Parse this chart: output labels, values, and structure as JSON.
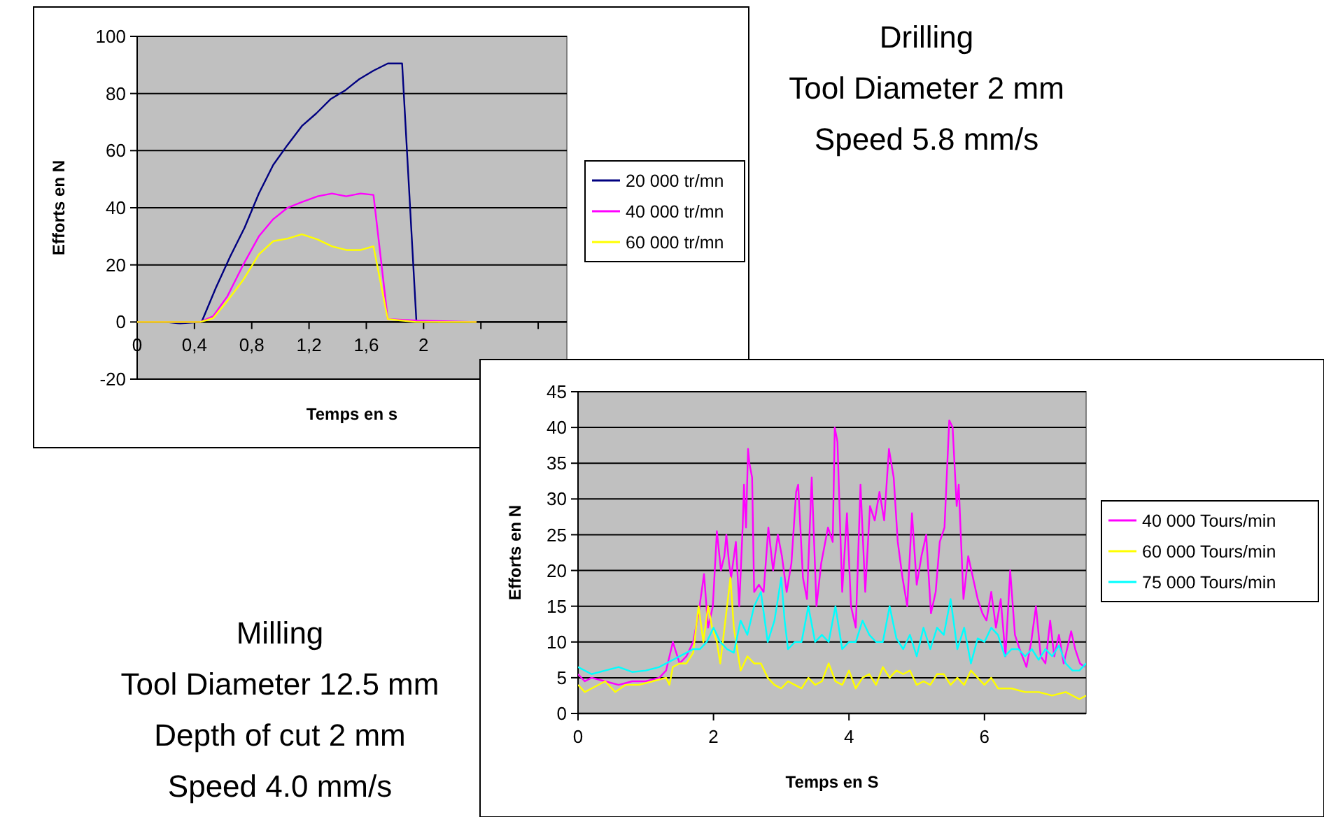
{
  "chart_data": [
    {
      "type": "line",
      "annotations": [
        "Drilling",
        "Tool Diameter 2 mm",
        "Speed 5.8 mm/s"
      ],
      "xlabel": "Temps en s",
      "ylabel": "Efforts en N",
      "xlim": [
        0,
        3
      ],
      "ylim": [
        -20,
        100
      ],
      "xticks": [
        0,
        {
          "value": 0.4,
          "label": "0,4"
        },
        {
          "value": 0.8,
          "label": "0,8"
        },
        {
          "value": 1.2,
          "label": "1,2"
        },
        {
          "value": 1.6,
          "label": "1,6"
        },
        2,
        {
          "value": 2.4,
          "label": null
        },
        {
          "value": 2.8,
          "label": null
        }
      ],
      "yticks": [
        -20,
        0,
        20,
        40,
        60,
        80,
        100
      ],
      "grid": "y",
      "legend": "right",
      "series": [
        {
          "name": "20 000 tr/mn",
          "color": "#000080",
          "x": [
            0,
            0.1,
            0.2,
            0.3,
            0.45,
            0.55,
            0.65,
            0.75,
            0.85,
            0.95,
            1.05,
            1.15,
            1.25,
            1.35,
            1.45,
            1.55,
            1.65,
            1.75,
            1.85,
            1.95,
            2.1
          ],
          "values": [
            0,
            0,
            0,
            -0.5,
            0,
            12,
            23,
            33,
            45,
            55,
            62,
            68.6,
            73,
            78,
            81,
            85,
            88,
            90.5,
            90.5,
            0,
            0
          ]
        },
        {
          "name": "40 000 tr/mn",
          "color": "#ff00ff",
          "x": [
            0,
            0.2,
            0.44,
            0.53,
            0.63,
            0.74,
            0.85,
            0.95,
            1.05,
            1.15,
            1.26,
            1.36,
            1.46,
            1.56,
            1.65,
            1.75,
            1.95,
            2.37
          ],
          "values": [
            0,
            0,
            0,
            2,
            9,
            20,
            30,
            36,
            40,
            42,
            44,
            45,
            44,
            45,
            44.5,
            1,
            0.5,
            0
          ]
        },
        {
          "name": "60 000 tr/mn",
          "color": "#ffff00",
          "x": [
            0,
            0.2,
            0.44,
            0.53,
            0.63,
            0.74,
            0.85,
            0.95,
            1.05,
            1.15,
            1.26,
            1.36,
            1.46,
            1.56,
            1.65,
            1.75,
            1.95,
            2.37
          ],
          "values": [
            0,
            0,
            0,
            1.3,
            7.4,
            14.7,
            23.7,
            28.3,
            29.2,
            30.7,
            28.9,
            26.5,
            25.2,
            25.2,
            26.5,
            1,
            0,
            0
          ]
        }
      ]
    },
    {
      "type": "line",
      "annotations": [
        "Milling",
        "Tool Diameter 12.5 mm",
        "Depth of cut 2 mm",
        "Speed 4.0 mm/s"
      ],
      "xlabel": "Temps en S",
      "ylabel": "Efforts en N",
      "xlim": [
        0,
        7.5
      ],
      "ylim": [
        0,
        45
      ],
      "xticks": [
        0,
        2,
        4,
        6
      ],
      "yticks": [
        0,
        5,
        10,
        15,
        20,
        25,
        30,
        35,
        40,
        45
      ],
      "grid": "y",
      "legend": "right",
      "series": [
        {
          "name": "40 000 Tours/min",
          "color": "#ff00ff",
          "x": [
            0,
            0.1,
            0.2,
            0.4,
            0.6,
            0.8,
            1,
            1.2,
            1.3,
            1.4,
            1.5,
            1.6,
            1.7,
            1.78,
            1.86,
            1.92,
            1.99,
            2.05,
            2.11,
            2.16,
            2.19,
            2.23,
            2.26,
            2.33,
            2.38,
            2.43,
            2.45,
            2.48,
            2.51,
            2.53,
            2.57,
            2.6,
            2.67,
            2.74,
            2.81,
            2.88,
            2.95,
            3.01,
            3.08,
            3.15,
            3.22,
            3.25,
            3.32,
            3.38,
            3.45,
            3.52,
            3.59,
            3.69,
            3.76,
            3.79,
            3.83,
            3.9,
            3.97,
            4.03,
            4.1,
            4.17,
            4.24,
            4.31,
            4.38,
            4.45,
            4.52,
            4.59,
            4.66,
            4.72,
            4.79,
            4.86,
            4.93,
            5,
            5.07,
            5.14,
            5.21,
            5.28,
            5.34,
            5.41,
            5.48,
            5.53,
            5.59,
            5.62,
            5.69,
            5.76,
            5.83,
            5.9,
            5.97,
            6.03,
            6.1,
            6.17,
            6.24,
            6.31,
            6.38,
            6.45,
            6.52,
            6.62,
            6.69,
            6.76,
            6.83,
            6.9,
            6.97,
            7.03,
            7.1,
            7.17,
            7.28,
            7.34,
            7.41,
            7.48
          ],
          "values": [
            5.5,
            4.5,
            5,
            4.5,
            4,
            4.5,
            4.5,
            5,
            6,
            10,
            7,
            8,
            10,
            14,
            19.5,
            12,
            15,
            25.5,
            20,
            22,
            25,
            21,
            19,
            24,
            15,
            26,
            32,
            26,
            37,
            35,
            33,
            17,
            18,
            17,
            26,
            20,
            25,
            22,
            17,
            21,
            31,
            32,
            19,
            16,
            33,
            15,
            21,
            26,
            24,
            40,
            38,
            17,
            28,
            15,
            12,
            32,
            17,
            29,
            27,
            31,
            27,
            37,
            33,
            24,
            19,
            15,
            28,
            18,
            22,
            25,
            14,
            17,
            24,
            26,
            41,
            40,
            29,
            32,
            16,
            22,
            19,
            16,
            14,
            13,
            17,
            12,
            16,
            8,
            20,
            11,
            9,
            6.5,
            10,
            15,
            8,
            7,
            13,
            8,
            11,
            7,
            11.5,
            9,
            7,
            6.5
          ]
        },
        {
          "name": "60 000 Tours/min",
          "color": "#ffff00",
          "x": [
            0,
            0.1,
            0.2,
            0.4,
            0.55,
            0.7,
            0.9,
            1.1,
            1.3,
            1.35,
            1.4,
            1.5,
            1.6,
            1.7,
            1.78,
            1.85,
            1.92,
            1.98,
            2.05,
            2.1,
            2.2,
            2.25,
            2.3,
            2.4,
            2.5,
            2.6,
            2.7,
            2.8,
            2.9,
            3,
            3.1,
            3.2,
            3.3,
            3.4,
            3.5,
            3.6,
            3.7,
            3.8,
            3.9,
            4,
            4.1,
            4.2,
            4.3,
            4.4,
            4.5,
            4.6,
            4.7,
            4.8,
            4.9,
            5,
            5.1,
            5.2,
            5.3,
            5.4,
            5.5,
            5.6,
            5.7,
            5.8,
            5.9,
            6,
            6.1,
            6.2,
            6.4,
            6.6,
            6.8,
            7,
            7.2,
            7.4,
            7.5
          ],
          "values": [
            4,
            3,
            3.5,
            4.5,
            3,
            4,
            4,
            4.5,
            5,
            4,
            6.5,
            7,
            7,
            8.5,
            15,
            10,
            15,
            12,
            10,
            7,
            15,
            19,
            12,
            6,
            8,
            7,
            7,
            5,
            4,
            3.5,
            4.5,
            4,
            3.5,
            5,
            4,
            4.5,
            7,
            4.5,
            4,
            6,
            3.5,
            5,
            5.5,
            4,
            6.5,
            5,
            6,
            5.5,
            6,
            4,
            4.5,
            4,
            5.5,
            5.5,
            4,
            5,
            4,
            6,
            5,
            4,
            5,
            3.5,
            3.5,
            3,
            3,
            2.5,
            3,
            2,
            2.5
          ]
        },
        {
          "name": "75 000 Tours/min",
          "color": "#00ffff",
          "x": [
            0,
            0.2,
            0.4,
            0.6,
            0.8,
            1,
            1.2,
            1.4,
            1.6,
            1.7,
            1.8,
            1.9,
            2,
            2.1,
            2.2,
            2.3,
            2.4,
            2.5,
            2.6,
            2.7,
            2.8,
            2.9,
            3,
            3.05,
            3.1,
            3.2,
            3.3,
            3.4,
            3.5,
            3.6,
            3.7,
            3.8,
            3.9,
            4,
            4.1,
            4.2,
            4.3,
            4.4,
            4.5,
            4.6,
            4.7,
            4.8,
            4.9,
            5,
            5.1,
            5.2,
            5.3,
            5.4,
            5.5,
            5.6,
            5.7,
            5.8,
            5.9,
            6,
            6.1,
            6.2,
            6.3,
            6.4,
            6.5,
            6.6,
            6.7,
            6.8,
            6.9,
            7,
            7.1,
            7.2,
            7.3,
            7.4,
            7.5
          ],
          "values": [
            6.5,
            5.5,
            6,
            6.5,
            5.8,
            6,
            6.5,
            7.5,
            8.5,
            9,
            9,
            10,
            12,
            10,
            9,
            8.5,
            13,
            11,
            15,
            17,
            10,
            13,
            19,
            13,
            9,
            10,
            10,
            15,
            10,
            11,
            10,
            15,
            9,
            10,
            10,
            13,
            11,
            10,
            10,
            15,
            10.5,
            9,
            11,
            8,
            12,
            9,
            12,
            11,
            16,
            9,
            12,
            7,
            10.5,
            10,
            12,
            11,
            8,
            9,
            9,
            8,
            9,
            7.5,
            9,
            8,
            9.5,
            7,
            6,
            6,
            7
          ]
        }
      ]
    }
  ]
}
